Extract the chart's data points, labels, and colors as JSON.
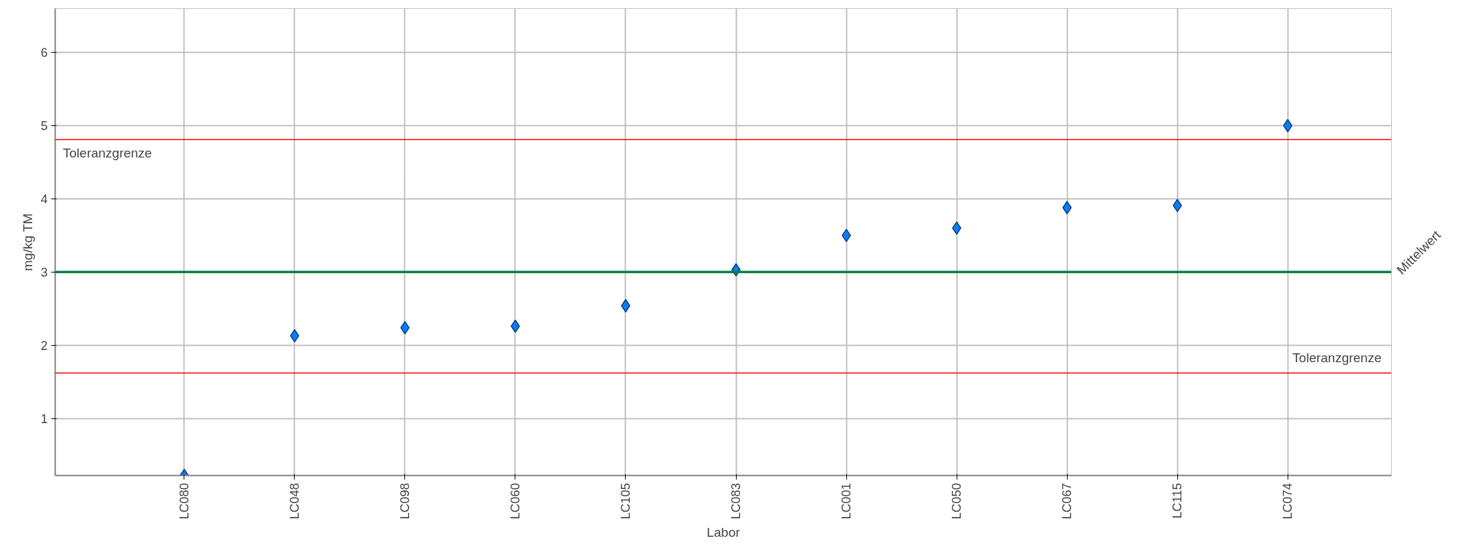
{
  "chart_data": {
    "type": "scatter",
    "xlabel": "Labor",
    "ylabel": "mg/kg TM",
    "categories": [
      "LC080",
      "LC048",
      "LC098",
      "LC060",
      "LC105",
      "LC083",
      "LC001",
      "LC050",
      "LC067",
      "LC115",
      "LC074"
    ],
    "series": [
      {
        "color": "#0a7df5",
        "values": [
          0.22,
          2.13,
          2.24,
          2.26,
          2.54,
          3.03,
          3.5,
          3.6,
          3.88,
          3.91,
          5.0
        ]
      }
    ],
    "marker": "diamond",
    "ylim": [
      0.22,
      6.6
    ],
    "yticks": [
      1,
      2,
      3,
      4,
      5,
      6
    ],
    "grid": true,
    "ref_lines": [
      {
        "axis": "y",
        "value": 4.81,
        "label": "Toleranzgrenze",
        "color": "#ff0000"
      },
      {
        "axis": "y",
        "value": 1.62,
        "label": "Toleranzgrenze",
        "color": "#ff0000"
      },
      {
        "axis": "y",
        "value": 3.0,
        "label": "Mittelwert",
        "color": "#008040"
      }
    ]
  }
}
